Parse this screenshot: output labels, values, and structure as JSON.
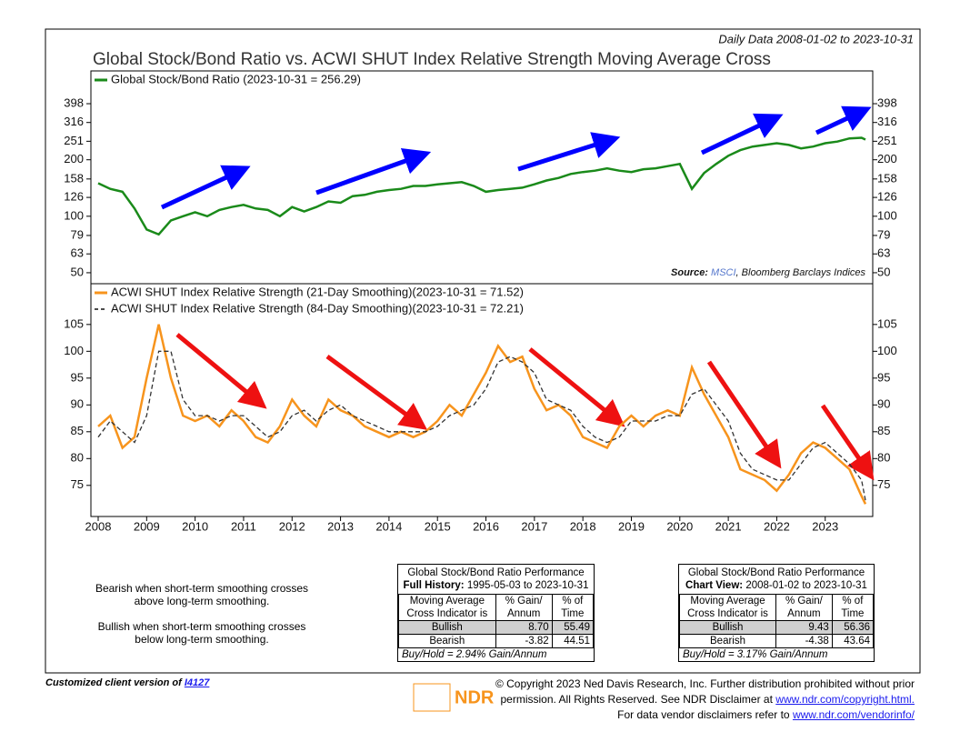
{
  "header": {
    "date_range": "Daily Data 2008-01-02 to 2023-10-31",
    "title": "Global Stock/Bond Ratio vs. ACWI SHUT Index Relative Strength Moving Average Cross"
  },
  "chart_data": [
    {
      "type": "line",
      "log_scale": true,
      "x": [
        2008,
        2008.25,
        2008.5,
        2008.75,
        2009,
        2009.25,
        2009.5,
        2009.75,
        2010,
        2010.25,
        2010.5,
        2010.75,
        2011,
        2011.25,
        2011.5,
        2011.75,
        2012,
        2012.25,
        2012.5,
        2012.75,
        2013,
        2013.25,
        2013.5,
        2013.75,
        2014,
        2014.25,
        2014.5,
        2014.75,
        2015,
        2015.25,
        2015.5,
        2015.75,
        2016,
        2016.25,
        2016.5,
        2016.75,
        2017,
        2017.25,
        2017.5,
        2017.75,
        2018,
        2018.25,
        2018.5,
        2018.75,
        2019,
        2019.25,
        2019.5,
        2019.75,
        2020,
        2020.25,
        2020.5,
        2020.75,
        2021,
        2021.25,
        2021.5,
        2021.75,
        2022,
        2022.25,
        2022.5,
        2022.75,
        2023,
        2023.25,
        2023.5,
        2023.75,
        2023.83
      ],
      "series": [
        {
          "name": "Global Stock/Bond Ratio (2023-10-31 = 256.29)",
          "color": "#1a8a1a",
          "values": [
            150,
            140,
            135,
            110,
            85,
            80,
            95,
            100,
            105,
            100,
            108,
            112,
            115,
            110,
            108,
            100,
            112,
            106,
            112,
            120,
            118,
            128,
            130,
            135,
            138,
            140,
            145,
            145,
            148,
            150,
            152,
            145,
            135,
            138,
            140,
            142,
            148,
            155,
            160,
            168,
            172,
            175,
            180,
            175,
            172,
            178,
            180,
            185,
            190,
            140,
            170,
            190,
            210,
            225,
            235,
            240,
            245,
            240,
            230,
            235,
            245,
            250,
            260,
            262,
            256.29
          ]
        }
      ],
      "ylim": [
        43.7,
        595
      ],
      "yticks": [
        50,
        63,
        79,
        100,
        126,
        158,
        200,
        251,
        316,
        398
      ],
      "source": {
        "label": "Source:",
        "link": "MSCI",
        "rest": ", Bloomberg Barclays Indices"
      }
    },
    {
      "type": "line",
      "log_scale": false,
      "x": [
        2008,
        2008.25,
        2008.5,
        2008.75,
        2009,
        2009.25,
        2009.5,
        2009.75,
        2010,
        2010.25,
        2010.5,
        2010.75,
        2011,
        2011.25,
        2011.5,
        2011.75,
        2012,
        2012.25,
        2012.5,
        2012.75,
        2013,
        2013.25,
        2013.5,
        2013.75,
        2014,
        2014.25,
        2014.5,
        2014.75,
        2015,
        2015.25,
        2015.5,
        2015.75,
        2016,
        2016.25,
        2016.5,
        2016.75,
        2017,
        2017.25,
        2017.5,
        2017.75,
        2018,
        2018.25,
        2018.5,
        2018.75,
        2019,
        2019.25,
        2019.5,
        2019.75,
        2020,
        2020.25,
        2020.5,
        2020.75,
        2021,
        2021.25,
        2021.5,
        2021.75,
        2022,
        2022.25,
        2022.5,
        2022.75,
        2023,
        2023.25,
        2023.5,
        2023.75,
        2023.83
      ],
      "series": [
        {
          "name": "ACWI SHUT Index Relative Strength (21-Day Smoothing)(2023-10-31 = 71.52)",
          "color": "#f7941d",
          "line_style": "solid",
          "values": [
            86,
            88,
            82,
            84,
            95,
            105,
            95,
            88,
            87,
            88,
            86,
            89,
            87,
            84,
            83,
            86,
            91,
            88,
            86,
            91,
            89,
            88,
            86,
            85,
            84,
            85,
            84,
            85,
            87,
            90,
            88,
            92,
            96,
            101,
            98,
            99,
            93,
            89,
            90,
            88,
            84,
            83,
            82,
            86,
            88,
            86,
            88,
            89,
            88,
            97,
            92,
            88,
            84,
            78,
            77,
            76,
            74,
            77,
            81,
            83,
            82,
            80,
            78,
            73,
            71.52
          ]
        },
        {
          "name": "ACWI SHUT Index Relative Strength (84-Day Smoothing)(2023-10-31 = 72.21)",
          "color": "#333333",
          "line_style": "dashed",
          "values": [
            84,
            87,
            85,
            83,
            88,
            100,
            100,
            91,
            88,
            88,
            87,
            88,
            88,
            86,
            84,
            85,
            88,
            89,
            87,
            89,
            90,
            88,
            87,
            86,
            85,
            85,
            85,
            85,
            86,
            88,
            89,
            90,
            93,
            98,
            99,
            98,
            96,
            91,
            90,
            89,
            86,
            84,
            83,
            84,
            87,
            87,
            87,
            88,
            88,
            92,
            93,
            90,
            87,
            81,
            78,
            77,
            76,
            76,
            79,
            82,
            83,
            81,
            79,
            76,
            72.21
          ]
        }
      ],
      "ylim": [
        69.2,
        112.6
      ],
      "yticks": [
        75,
        80,
        85,
        90,
        95,
        100,
        105
      ],
      "xlim": [
        2007.85,
        2023.98
      ],
      "xticks": [
        2008,
        2009,
        2010,
        2011,
        2012,
        2013,
        2014,
        2015,
        2016,
        2017,
        2018,
        2019,
        2020,
        2021,
        2022,
        2023
      ]
    }
  ],
  "notes": [
    "Bearish when short-term smoothing crosses",
    "above long-term smoothing.",
    "Bullish when short-term smoothing crosses",
    "below long-term smoothing."
  ],
  "tables": [
    {
      "title": "Global Stock/Bond Ratio Performance",
      "period_label": "Full History:",
      "period": "1995-05-03 to 2023-10-31",
      "columns": [
        "Moving Average Cross Indicator is",
        "% Gain/ Annum",
        "% of Time"
      ],
      "rows": [
        [
          "Bullish",
          "8.70",
          "55.49"
        ],
        [
          "Bearish",
          "-3.82",
          "44.51"
        ]
      ],
      "footnote": "Buy/Hold = 2.94% Gain/Annum"
    },
    {
      "title": "Global Stock/Bond Ratio Performance",
      "period_label": "Chart View:",
      "period": "2008-01-02 to 2023-10-31",
      "columns": [
        "Moving Average Cross Indicator is",
        "% Gain/ Annum",
        "% of Time"
      ],
      "rows": [
        [
          "Bullish",
          "9.43",
          "56.36"
        ],
        [
          "Bearish",
          "-4.38",
          "43.64"
        ]
      ],
      "footnote": "Buy/Hold = 3.17% Gain/Annum"
    }
  ],
  "footer": {
    "client": "Customized client version of",
    "client_link": "I4127",
    "logo": "NDR",
    "line1": "© Copyright 2023 Ned Davis Research, Inc. Further distribution prohibited without prior",
    "line2": "permission. All Rights Reserved. See NDR Disclaimer at",
    "link2": "www.ndr.com/copyright.html.",
    "line3": "For data vendor disclaimers refer to",
    "link3": "www.ndr.com/vendorinfo/"
  }
}
